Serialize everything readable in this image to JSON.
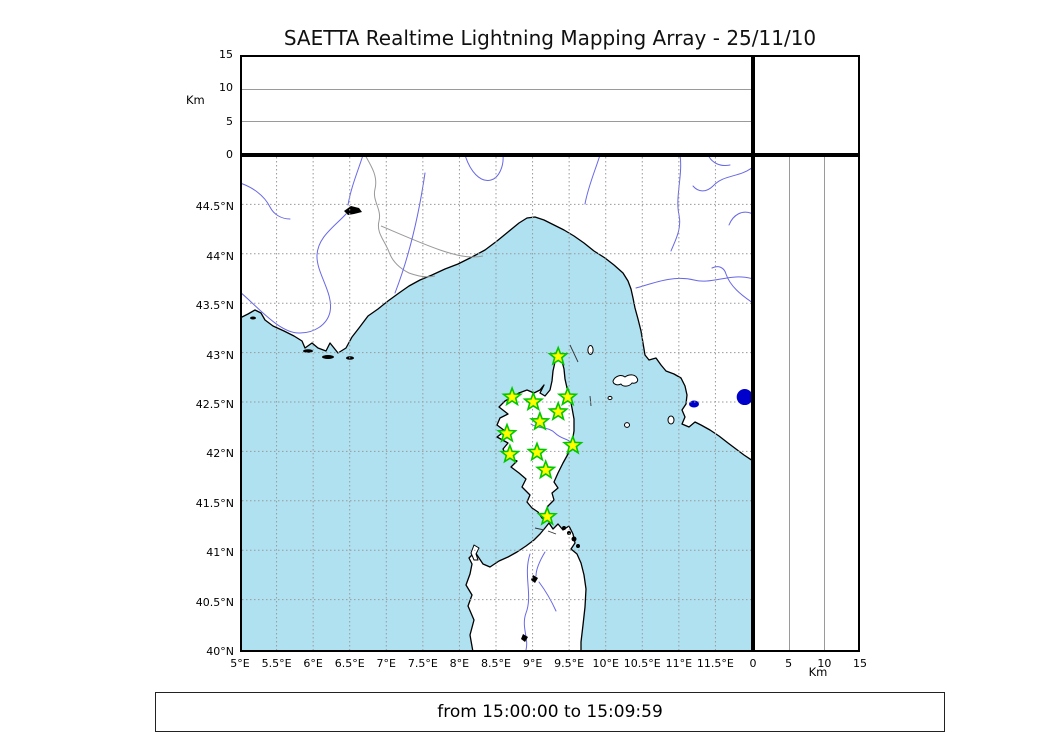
{
  "title": "SAETTA Realtime Lightning Mapping Array - 25/11/10",
  "footer": {
    "time_window": "from 15:00:00 to 15:09:59"
  },
  "colors": {
    "sea": "#b0e1f1",
    "land": "#ffffff",
    "coast": "#000000",
    "river": "#6868e6",
    "region_border": "#999999",
    "grid": "#999999",
    "station_fill": "#ffff00",
    "station_edge": "#00c800",
    "detection": "#0000cc"
  },
  "top_panel": {
    "y_label": "Km",
    "y_range": [
      0,
      15
    ],
    "y_ticks": [
      {
        "label": "15",
        "value": 15
      },
      {
        "label": "10",
        "value": 10
      },
      {
        "label": "5",
        "value": 5
      },
      {
        "label": "0",
        "value": 0
      }
    ],
    "gridlines": [
      5,
      10
    ]
  },
  "right_panel": {
    "x_label": "Km",
    "x_range": [
      0,
      15
    ],
    "x_ticks": [
      {
        "label": "0",
        "value": 0
      },
      {
        "label": "5",
        "value": 5
      },
      {
        "label": "10",
        "value": 10
      },
      {
        "label": "15",
        "value": 15
      }
    ],
    "gridlines": [
      5,
      10
    ]
  },
  "map": {
    "lon_range": [
      5,
      12
    ],
    "lat_range": [
      40,
      45
    ],
    "lon_ticks": [
      {
        "label": "5°E",
        "value": 5
      },
      {
        "label": "5.5°E",
        "value": 5.5
      },
      {
        "label": "6°E",
        "value": 6
      },
      {
        "label": "6.5°E",
        "value": 6.5
      },
      {
        "label": "7°E",
        "value": 7
      },
      {
        "label": "7.5°E",
        "value": 7.5
      },
      {
        "label": "8°E",
        "value": 8
      },
      {
        "label": "8.5°E",
        "value": 8.5
      },
      {
        "label": "9°E",
        "value": 9
      },
      {
        "label": "9.5°E",
        "value": 9.5
      },
      {
        "label": "10°E",
        "value": 10
      },
      {
        "label": "10.5°E",
        "value": 10.5
      },
      {
        "label": "11°E",
        "value": 11
      },
      {
        "label": "11.5°E",
        "value": 11.5
      }
    ],
    "lat_ticks": [
      {
        "label": "44.5°N",
        "value": 44.5
      },
      {
        "label": "44°N",
        "value": 44
      },
      {
        "label": "43.5°N",
        "value": 43.5
      },
      {
        "label": "43°N",
        "value": 43
      },
      {
        "label": "42.5°N",
        "value": 42.5
      },
      {
        "label": "42°N",
        "value": 42
      },
      {
        "label": "41.5°N",
        "value": 41.5
      },
      {
        "label": "41°N",
        "value": 41
      },
      {
        "label": "40.5°N",
        "value": 40.5
      },
      {
        "label": "40°N",
        "value": 40
      }
    ]
  },
  "chart_data": {
    "type": "scatter",
    "title": "SAETTA Realtime Lightning Mapping Array - 25/11/10",
    "time_window": "from 15:00:00 to 15:09:59",
    "panels": [
      {
        "name": "altitude-vs-longitude",
        "ylabel": "Km",
        "ylim": [
          0,
          15
        ],
        "xlim": [
          5,
          12
        ],
        "yticks": [
          0,
          5,
          10,
          15
        ],
        "gridlines_km": [
          5,
          10
        ],
        "points": []
      },
      {
        "name": "plan-view-map",
        "xlim": [
          5,
          12
        ],
        "ylim": [
          40,
          45
        ],
        "grid_step_deg": 0.5,
        "series": [
          {
            "name": "lma-stations",
            "marker": "star",
            "fill": "#ffff00",
            "edge": "#00c800",
            "points": [
              [
                9.35,
                42.96
              ],
              [
                8.72,
                42.55
              ],
              [
                9.01,
                42.5
              ],
              [
                9.48,
                42.55
              ],
              [
                9.35,
                42.4
              ],
              [
                9.1,
                42.3
              ],
              [
                8.65,
                42.18
              ],
              [
                9.55,
                42.06
              ],
              [
                8.69,
                41.97
              ],
              [
                9.06,
                41.99
              ],
              [
                9.18,
                41.81
              ],
              [
                9.2,
                41.34
              ]
            ]
          },
          {
            "name": "detection",
            "marker": "circle",
            "color": "#0000cc",
            "points": [
              [
                11.9,
                42.55
              ]
            ]
          }
        ]
      },
      {
        "name": "altitude-vs-latitude",
        "xlabel": "Km",
        "xlim": [
          0,
          15
        ],
        "ylim": [
          40,
          45
        ],
        "xticks": [
          0,
          5,
          10,
          15
        ],
        "gridlines_km": [
          5,
          10
        ],
        "points": []
      }
    ]
  }
}
